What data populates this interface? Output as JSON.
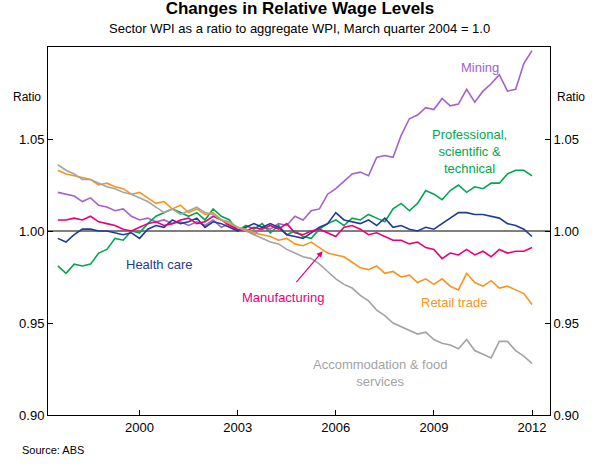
{
  "chart_data": {
    "type": "line",
    "title": "Changes in Relative Wage Levels",
    "subtitle": "Sector WPI as a ratio to aggregate WPI, March quarter 2004 = 1.0",
    "y_label": "Ratio",
    "source": "Source: ABS",
    "grid": false,
    "reference_line": 1,
    "x": [
      1997.5,
      1997.75,
      1998,
      1998.25,
      1998.5,
      1998.75,
      1999,
      1999.25,
      1999.5,
      1999.75,
      2000,
      2000.25,
      2000.5,
      2000.75,
      2001,
      2001.25,
      2001.5,
      2001.75,
      2002,
      2002.25,
      2002.5,
      2002.75,
      2003,
      2003.25,
      2003.5,
      2003.75,
      2004,
      2004.25,
      2004.5,
      2004.75,
      2005,
      2005.25,
      2005.5,
      2005.75,
      2006,
      2006.25,
      2006.5,
      2006.75,
      2007,
      2007.25,
      2007.5,
      2007.75,
      2008,
      2008.25,
      2008.5,
      2008.75,
      2009,
      2009.25,
      2009.5,
      2009.75,
      2010,
      2010.25,
      2010.5,
      2010.75,
      2011,
      2011.25,
      2011.5,
      2011.75,
      2012
    ],
    "xlim": [
      1997.2,
      2012.55
    ],
    "xticks": [
      2000,
      2003,
      2006,
      2009,
      2012
    ],
    "ylim": [
      0.9,
      1.1
    ],
    "yticks": [
      {
        "value": 0.9,
        "label": "0.90"
      },
      0.95,
      {
        "value": 1,
        "label": "1.00"
      },
      1.05
    ],
    "y2lim": [
      0.9,
      1.1
    ],
    "y2ticks": [
      {
        "value": 0.9,
        "label": "0.90"
      },
      0.95,
      {
        "value": 1,
        "label": "1.00"
      },
      1.05
    ],
    "series": [
      {
        "name": "Mining",
        "color": "#a461c9",
        "values": [
          1.021,
          1.02,
          1.019,
          1.016,
          1.018,
          1.014,
          1.013,
          1.011,
          1.012,
          1.008,
          1.006,
          1.007,
          1.005,
          1.006,
          1.004,
          1.005,
          1.003,
          1.005,
          1.003,
          1.006,
          1.002,
          1.004,
          1.0,
          1.001,
          0.998,
          1.002,
          1.001,
          1.004,
          1.003,
          1.008,
          1.006,
          1.011,
          1.012,
          1.02,
          1.023,
          1.027,
          1.031,
          1.032,
          1.03,
          1.04,
          1.041,
          1.04,
          1.052,
          1.061,
          1.063,
          1.067,
          1.066,
          1.072,
          1.068,
          1.069,
          1.077,
          1.07,
          1.076,
          1.08,
          1.085,
          1.076,
          1.077,
          1.091,
          1.098
        ]
      },
      {
        "name": "Professional, scientific & technical",
        "color": "#00a651",
        "values": [
          0.981,
          0.977,
          0.982,
          0.981,
          0.982,
          0.988,
          0.99,
          0.996,
          0.995,
          1.0,
          0.999,
          1.004,
          1.008,
          1.01,
          1.012,
          1.01,
          1.008,
          1.01,
          1.006,
          1.012,
          1.008,
          1.006,
          1.0,
          1.003,
          1.001,
          1.004,
          0.999,
          1.003,
          0.998,
          1.0,
          0.997,
          0.996,
          1.001,
          1.004,
          1.006,
          1.003,
          1.007,
          1.006,
          1.009,
          1.007,
          1.005,
          1.012,
          1.015,
          1.011,
          1.015,
          1.022,
          1.02,
          1.017,
          1.022,
          1.025,
          1.021,
          1.024,
          1.023,
          1.026,
          1.026,
          1.031,
          1.033,
          1.033,
          1.03
        ]
      },
      {
        "name": "Health care",
        "color": "#1f3c94",
        "values": [
          0.996,
          0.994,
          0.998,
          1.001,
          1.001,
          1.0,
          1.0,
          0.999,
          0.998,
          0.999,
          0.996,
          1.001,
          1.003,
          1.002,
          1.006,
          1.004,
          1.005,
          1.007,
          1.002,
          1.005,
          1.004,
          1.002,
          1.0,
          1.002,
          1.004,
          1.002,
          1.004,
          1.002,
          0.998,
          0.997,
          0.996,
          0.999,
          1.002,
          1.004,
          1.01,
          1.006,
          1.005,
          1.004,
          1.006,
          1.003,
          1.007,
          1.002,
          1.003,
          1.001,
          1.0,
          1.002,
          1.001,
          1.004,
          1.007,
          1.01,
          1.01,
          1.009,
          1.009,
          1.008,
          1.007,
          1.004,
          1.003,
          1.001,
          0.997
        ]
      },
      {
        "name": "Manufacturing",
        "color": "#e6007e",
        "values": [
          1.006,
          1.006,
          1.007,
          1.006,
          1.008,
          1.005,
          1.004,
          1.003,
          1.001,
          1.0,
          1.002,
          1.004,
          1.005,
          1.003,
          1.004,
          1.006,
          1.007,
          1.004,
          1.005,
          1.008,
          1.006,
          1.003,
          1.001,
          1.0,
          1.002,
          1.001,
          1.003,
          1.001,
          1.004,
          0.999,
          0.998,
          1.0,
          1.001,
          0.999,
          0.997,
          1.002,
          1.003,
          1.001,
          0.998,
          0.999,
          0.997,
          0.995,
          0.995,
          0.993,
          0.994,
          0.991,
          0.99,
          0.985,
          0.988,
          0.987,
          0.99,
          0.987,
          0.989,
          0.986,
          0.99,
          0.988,
          0.989,
          0.989,
          0.991
        ]
      },
      {
        "name": "Retail trade",
        "color": "#f7941d",
        "values": [
          1.033,
          1.031,
          1.03,
          1.029,
          1.028,
          1.025,
          1.026,
          1.024,
          1.023,
          1.02,
          1.021,
          1.018,
          1.015,
          1.016,
          1.012,
          1.014,
          1.01,
          1.012,
          1.009,
          1.01,
          1.006,
          1.004,
          1.002,
          1.001,
          0.999,
          0.998,
          0.997,
          0.995,
          0.996,
          0.993,
          0.992,
          0.994,
          0.991,
          0.988,
          0.987,
          0.986,
          0.983,
          0.98,
          0.979,
          0.981,
          0.977,
          0.978,
          0.975,
          0.976,
          0.972,
          0.974,
          0.971,
          0.974,
          0.97,
          0.968,
          0.977,
          0.972,
          0.97,
          0.973,
          0.969,
          0.97,
          0.968,
          0.966,
          0.96
        ]
      },
      {
        "name": "Accommodation & food services",
        "color": "#a3a3a3",
        "values": [
          1.036,
          1.033,
          1.031,
          1.028,
          1.028,
          1.026,
          1.024,
          1.023,
          1.021,
          1.02,
          1.018,
          1.016,
          1.013,
          1.01,
          1.012,
          1.009,
          1.011,
          1.013,
          1.01,
          1.009,
          1.006,
          1.005,
          1.002,
          1.0,
          0.998,
          0.996,
          0.994,
          0.993,
          0.99,
          0.988,
          0.986,
          0.985,
          0.982,
          0.978,
          0.974,
          0.971,
          0.969,
          0.965,
          0.962,
          0.957,
          0.954,
          0.95,
          0.948,
          0.946,
          0.944,
          0.945,
          0.941,
          0.939,
          0.938,
          0.936,
          0.941,
          0.935,
          0.933,
          0.931,
          0.94,
          0.94,
          0.935,
          0.932,
          0.928
        ]
      }
    ]
  }
}
